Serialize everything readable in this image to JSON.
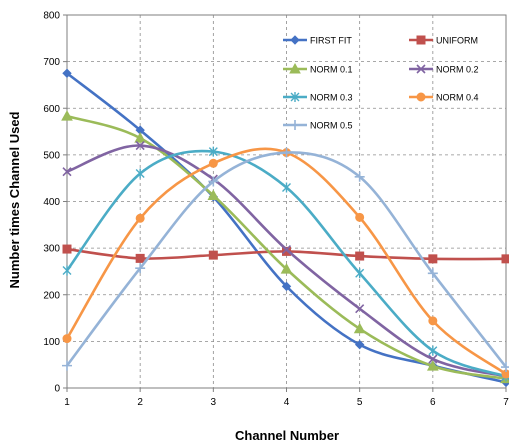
{
  "chart_data": {
    "type": "line",
    "title": "",
    "xlabel": "Channel Number",
    "ylabel": "Number times Channel Used",
    "x": [
      1,
      2,
      3,
      4,
      5,
      6,
      7
    ],
    "x_ticks": [
      "1",
      "2",
      "3",
      "4",
      "5",
      "6",
      "7"
    ],
    "xlim": [
      1,
      7
    ],
    "ylim": [
      0,
      800
    ],
    "y_ticks": [
      "0",
      "100",
      "200",
      "300",
      "400",
      "500",
      "600",
      "700",
      "800"
    ],
    "grid": true,
    "legend_placement": "top-right",
    "series": [
      {
        "name": "FIRST FIT",
        "color": "#4472C4",
        "marker": "diamond",
        "values": [
          675,
          553,
          410,
          218,
          93,
          48,
          12
        ]
      },
      {
        "name": "UNIFORM",
        "color": "#C0504D",
        "marker": "square",
        "values": [
          298,
          278,
          285,
          293,
          283,
          277,
          277
        ]
      },
      {
        "name": "NORM 0.1",
        "color": "#9BBB59",
        "marker": "triangle",
        "values": [
          583,
          536,
          413,
          255,
          127,
          47,
          20
        ]
      },
      {
        "name": "NORM 0.2",
        "color": "#8064A2",
        "marker": "x",
        "values": [
          464,
          520,
          448,
          297,
          170,
          62,
          25
        ]
      },
      {
        "name": "NORM 0.3",
        "color": "#4BACC6",
        "marker": "star",
        "values": [
          252,
          460,
          507,
          430,
          246,
          80,
          25
        ]
      },
      {
        "name": "NORM 0.4",
        "color": "#F79646",
        "marker": "circle",
        "values": [
          106,
          364,
          482,
          505,
          366,
          144,
          30
        ]
      },
      {
        "name": "NORM 0.5",
        "color": "#95B3D7",
        "marker": "plus",
        "values": [
          48,
          257,
          443,
          505,
          453,
          246,
          45
        ]
      }
    ]
  }
}
